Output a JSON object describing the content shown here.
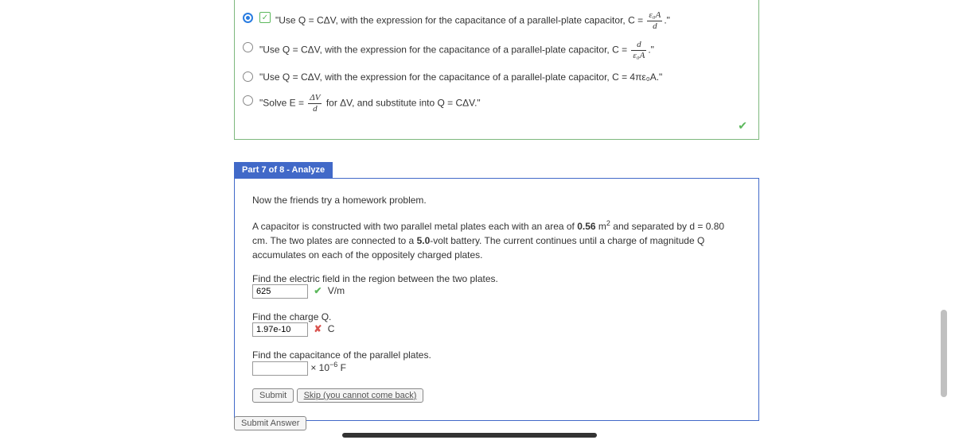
{
  "answer_options": {
    "opt1": "\"Use Q = CΔV, with the expression for the capacitance of a parallel-plate capacitor, C = ",
    "opt1_frac_num": "ε₀A",
    "opt1_frac_den": "d",
    "opt1_end": ".\"",
    "opt2": "\"Use Q = CΔV, with the expression for the capacitance of a parallel-plate capacitor, C = ",
    "opt2_frac_num": "d",
    "opt2_frac_den": "ε₀A",
    "opt2_end": ".\"",
    "opt3": "\"Use Q = CΔV, with the expression for the capacitance of a parallel-plate capacitor, C = 4πε₀A.\"",
    "opt4_a": "\"Solve E = ",
    "opt4_frac_num": "ΔV",
    "opt4_frac_den": "d",
    "opt4_b": " for ΔV, and substitute into Q = CΔV.\""
  },
  "part_header": "Part 7 of 8 - Analyze",
  "intro": "Now the friends try a homework problem.",
  "problem_a": "A capacitor is constructed with two parallel metal plates each with an area of ",
  "area_val": "0.56",
  "problem_b": " m",
  "problem_c": " and separated by d = 0.80 cm. The two plates are connected to a ",
  "voltage_val": "5.0",
  "problem_d": "-volt battery. The current continues until a charge of magnitude Q accumulates on each of the oppositely charged plates.",
  "q1_label": "Find the electric field in the region between the two plates.",
  "q1_value": "625",
  "q1_unit": "V/m",
  "q2_label": "Find the charge Q.",
  "q2_value": "1.97e-10",
  "q2_unit": "C",
  "q3_label": "Find the capacitance of the parallel plates.",
  "q3_value": "",
  "q3_unit_prefix": "× 10",
  "q3_unit_exp": "−6",
  "q3_unit_suffix": " F",
  "submit_btn": "Submit",
  "skip_btn": "Skip (you cannot come back)",
  "submit_answer_btn": "Submit Answer"
}
